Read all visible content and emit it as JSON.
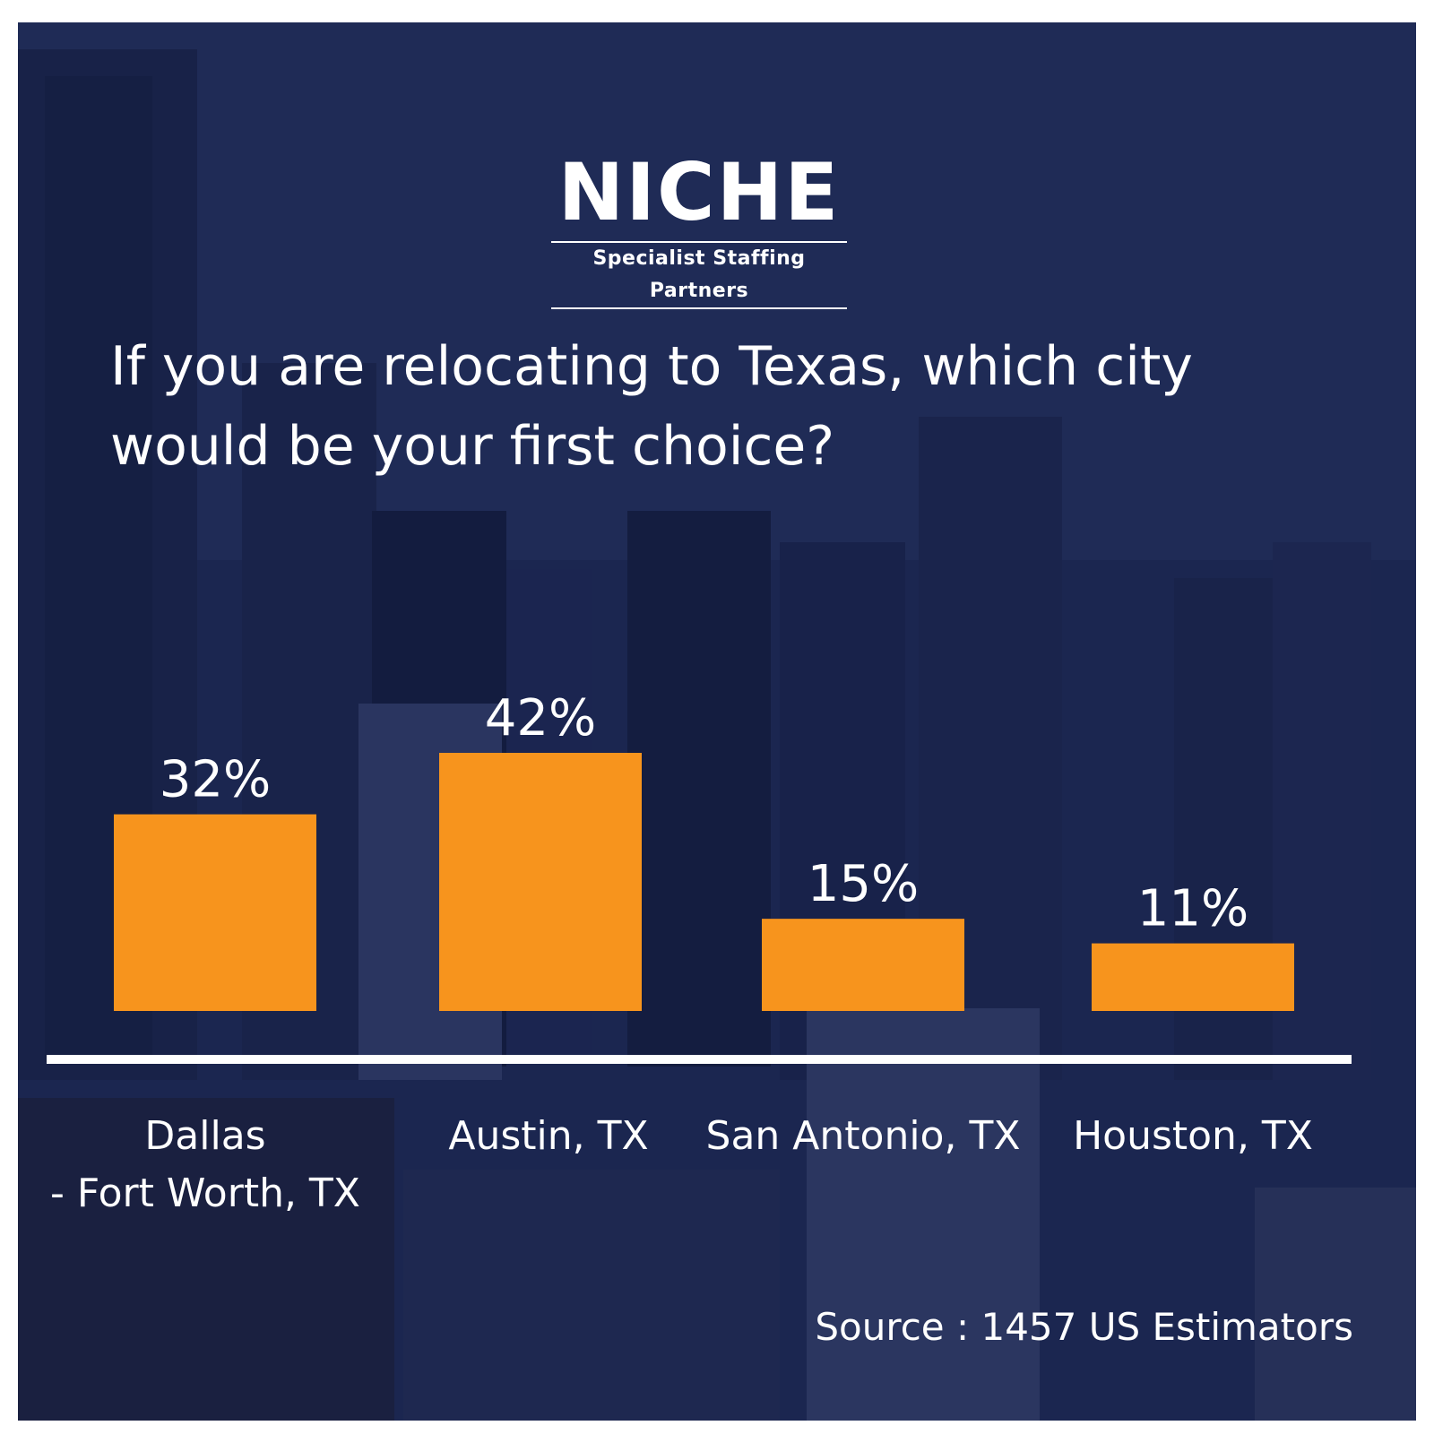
{
  "logo": {
    "wordmark": "NICHE",
    "tagline": "Specialist Staffing Partners"
  },
  "colors": {
    "background": "#1f2b56",
    "bar": "#f7941d",
    "text": "#ffffff"
  },
  "chart_data": {
    "type": "bar",
    "title": "If you are relocating to Texas, which city would be your first choice?",
    "categories": [
      [
        "Dallas",
        "- Fort Worth, TX"
      ],
      [
        "Austin, TX"
      ],
      [
        "San Antonio, TX"
      ],
      [
        "Houston, TX"
      ]
    ],
    "values": [
      32,
      42,
      15,
      11
    ],
    "data_labels": [
      "32%",
      "42%",
      "15%",
      "11%"
    ],
    "unit": "%",
    "ylim": [
      0,
      45
    ],
    "grid": false,
    "legend": "none",
    "xlabel": "",
    "ylabel": ""
  },
  "source": "Source : 1457 US Estimators"
}
